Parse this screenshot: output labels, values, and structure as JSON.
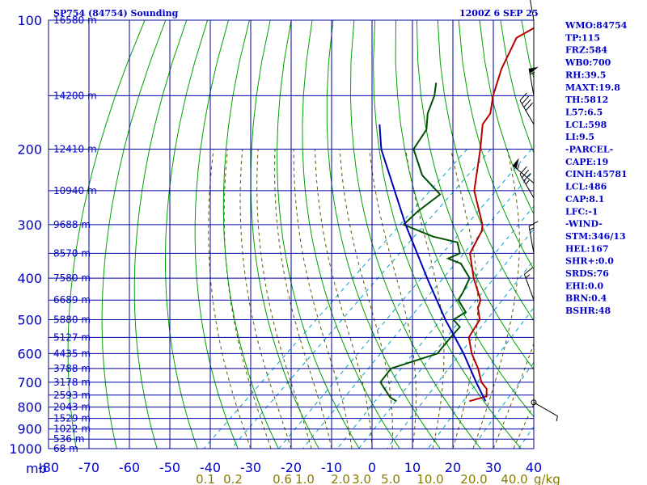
{
  "header": {
    "station": "SP754 (84754) Sounding",
    "time": "1200Z  6 SEP 25"
  },
  "units": {
    "pressure_unit": "mb",
    "mixing_ratio_unit": "g/kg"
  },
  "indices": [
    "WMO:84754",
    "TP:115",
    "FRZ:584",
    "WB0:700",
    "RH:39.5",
    "MAXT:19.8",
    "TH:5812",
    "L57:6.5",
    "LCL:598",
    "LI:9.5",
    "-PARCEL-",
    "CAPE:19",
    "CINH:45781",
    "LCL:486",
    "CAP:8.1",
    "LFC:-1",
    "-WIND-",
    "STM:346/13",
    "HEL:167",
    "SHR+:0.0",
    "SRDS:76",
    "EHI:0.0",
    "BRN:0.4",
    "BSHR:48"
  ],
  "colors": {
    "grid": "#0000a0",
    "dry_adiabat": "#00a000",
    "moist_adiabat": "#5a5a00",
    "mixing_ratio": "#00a0c8",
    "temperature": "#b40000",
    "dewpoint": "#005000",
    "parcel": "#0000b4",
    "wind": "#000000"
  },
  "chart_data": {
    "type": "line",
    "title": "SP754 (84754) Sounding",
    "xlabel": "",
    "ylabel": "mb",
    "x_axis": "temperature (°C), skewed",
    "y_axis": "pressure (mb), log scale",
    "xlim": [
      -80,
      40
    ],
    "ylim": [
      1000,
      100
    ],
    "grid": true,
    "pressure_levels": [
      100,
      200,
      300,
      400,
      500,
      600,
      700,
      800,
      900,
      1000
    ],
    "temperature_ticks": [
      -80,
      -70,
      -60,
      -50,
      -40,
      -30,
      -20,
      -10,
      0,
      10,
      20,
      30,
      40
    ],
    "mixing_ratio_labels": [
      "0.1",
      "0.2",
      "0.6",
      "1.0",
      "2.0",
      "3.0",
      "5.0",
      "10.0",
      "20.0",
      "40.0"
    ],
    "mixing_ratio_values": [
      0.1,
      0.2,
      0.6,
      1.0,
      2.0,
      3.0,
      5.0,
      10.0,
      20.0,
      40.0
    ],
    "mixing_ratio_unit": "g/kg",
    "height_labels": [
      {
        "p": 100,
        "label": "16580 m"
      },
      {
        "p": 150,
        "label": "14200 m"
      },
      {
        "p": 200,
        "label": "12410 m"
      },
      {
        "p": 250,
        "label": "10940 m"
      },
      {
        "p": 300,
        "label": "9688 m"
      },
      {
        "p": 350,
        "label": "8570 m"
      },
      {
        "p": 400,
        "label": "7580 m"
      },
      {
        "p": 450,
        "label": "6689 m"
      },
      {
        "p": 500,
        "label": "5880 m"
      },
      {
        "p": 550,
        "label": "5127 m"
      },
      {
        "p": 600,
        "label": "4435 m"
      },
      {
        "p": 650,
        "label": "3788 m"
      },
      {
        "p": 700,
        "label": "3178 m"
      },
      {
        "p": 750,
        "label": "2593 m"
      },
      {
        "p": 800,
        "label": "2043 m"
      },
      {
        "p": 850,
        "label": "1529 m"
      },
      {
        "p": 900,
        "label": "1022 m"
      },
      {
        "p": 950,
        "label": "536 m"
      },
      {
        "p": 1000,
        "label": "68 m"
      }
    ],
    "series": [
      {
        "key": "temperature",
        "points": [
          {
            "p": 775,
            "t": 11.5
          },
          {
            "p": 755,
            "t": 14.5
          },
          {
            "p": 725,
            "t": 12.5
          },
          {
            "p": 700,
            "t": 9.5
          },
          {
            "p": 650,
            "t": 5.0
          },
          {
            "p": 600,
            "t": -0.5
          },
          {
            "p": 550,
            "t": -5.5
          },
          {
            "p": 500,
            "t": -7.5
          },
          {
            "p": 470,
            "t": -11.0
          },
          {
            "p": 450,
            "t": -12.5
          },
          {
            "p": 400,
            "t": -20.0
          },
          {
            "p": 350,
            "t": -27.5
          },
          {
            "p": 310,
            "t": -30.5
          },
          {
            "p": 300,
            "t": -32.0
          },
          {
            "p": 250,
            "t": -43.0
          },
          {
            "p": 200,
            "t": -52.5
          },
          {
            "p": 175,
            "t": -58.5
          },
          {
            "p": 165,
            "t": -59.5
          },
          {
            "p": 150,
            "t": -63.5
          },
          {
            "p": 130,
            "t": -68.5
          },
          {
            "p": 110,
            "t": -73.0
          },
          {
            "p": 100,
            "t": -70.0
          }
        ]
      },
      {
        "key": "dewpoint",
        "points": [
          {
            "p": 775,
            "t": -6.5
          },
          {
            "p": 760,
            "t": -9.0
          },
          {
            "p": 700,
            "t": -15.5
          },
          {
            "p": 650,
            "t": -16.5
          },
          {
            "p": 600,
            "t": -9.0
          },
          {
            "p": 550,
            "t": -10.0
          },
          {
            "p": 520,
            "t": -10.5
          },
          {
            "p": 500,
            "t": -14.0
          },
          {
            "p": 480,
            "t": -13.0
          },
          {
            "p": 450,
            "t": -18.0
          },
          {
            "p": 430,
            "t": -19.0
          },
          {
            "p": 400,
            "t": -21.0
          },
          {
            "p": 370,
            "t": -27.0
          },
          {
            "p": 360,
            "t": -31.5
          },
          {
            "p": 350,
            "t": -30.0
          },
          {
            "p": 330,
            "t": -33.5
          },
          {
            "p": 320,
            "t": -41.0
          },
          {
            "p": 300,
            "t": -51.5
          },
          {
            "p": 280,
            "t": -51.5
          },
          {
            "p": 255,
            "t": -50.5
          },
          {
            "p": 230,
            "t": -60.0
          },
          {
            "p": 200,
            "t": -69.0
          },
          {
            "p": 180,
            "t": -71.0
          },
          {
            "p": 165,
            "t": -75.0
          },
          {
            "p": 150,
            "t": -78.0
          },
          {
            "p": 140,
            "t": -81.0
          }
        ]
      },
      {
        "key": "parcel",
        "points": [
          {
            "p": 775,
            "t": 15.5
          },
          {
            "p": 700,
            "t": 8.2
          },
          {
            "p": 600,
            "t": -2.5
          },
          {
            "p": 500,
            "t": -16.0
          },
          {
            "p": 400,
            "t": -31.5
          },
          {
            "p": 300,
            "t": -51.0
          },
          {
            "p": 200,
            "t": -77.0
          },
          {
            "p": 175,
            "t": -84.0
          }
        ]
      }
    ],
    "wind_barbs": [
      {
        "p": 100,
        "dir": 350,
        "kt": 15
      },
      {
        "p": 150,
        "dir": 350,
        "kt": 55
      },
      {
        "p": 175,
        "dir": 330,
        "kt": 40
      },
      {
        "p": 240,
        "dir": 310,
        "kt": 55
      },
      {
        "p": 260,
        "dir": 330,
        "kt": 35
      },
      {
        "p": 350,
        "dir": 350,
        "kt": 15
      },
      {
        "p": 450,
        "dir": 340,
        "kt": 15
      },
      {
        "p": 780,
        "dir": 120,
        "kt": 5
      }
    ]
  }
}
